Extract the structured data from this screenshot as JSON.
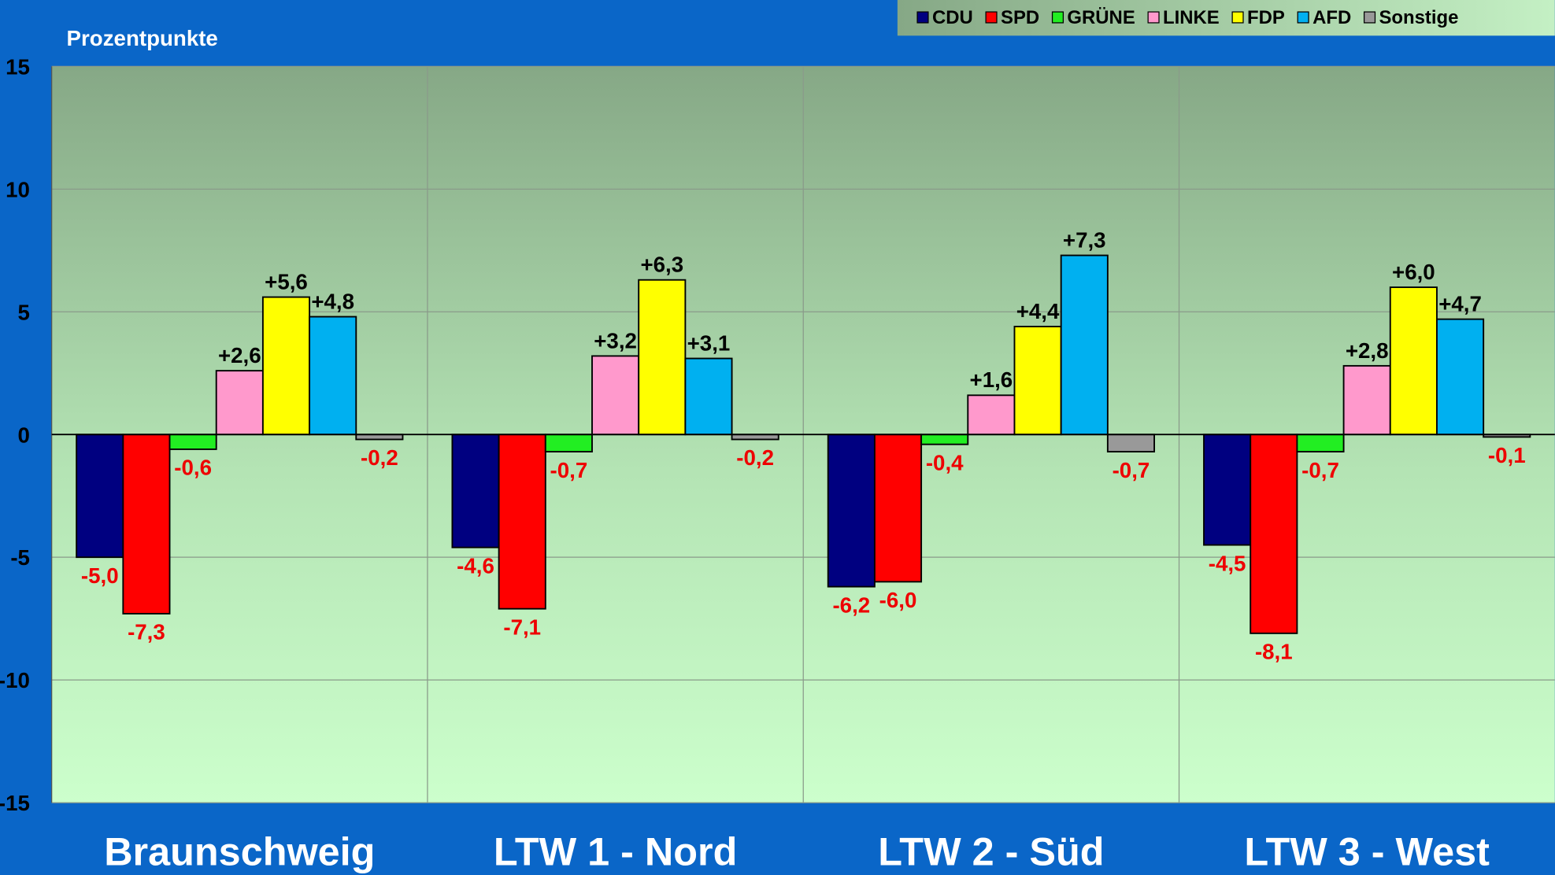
{
  "chart_data": {
    "type": "bar",
    "subtitle": "Prozentpunkte",
    "categories": [
      "Braunschweig",
      "LTW 1 - Nord",
      "LTW 2 - Süd",
      "LTW 3 - West"
    ],
    "series": [
      {
        "name": "CDU",
        "color": "#000080",
        "values": [
          -5.0,
          -4.6,
          -6.2,
          -4.5
        ],
        "value_labels": [
          "-5,0",
          "-4,6",
          "-6,2",
          "-4,5"
        ]
      },
      {
        "name": "SPD",
        "color": "#ff0000",
        "values": [
          -7.3,
          -7.1,
          -6.0,
          -8.1
        ],
        "value_labels": [
          "-7,3",
          "-7,1",
          "-6,0",
          "-8,1"
        ]
      },
      {
        "name": "GRÜNE",
        "color": "#22ee22",
        "values": [
          -0.6,
          -0.7,
          -0.4,
          -0.7
        ],
        "value_labels": [
          "-0,6",
          "-0,7",
          "-0,4",
          "-0,7"
        ]
      },
      {
        "name": "LINKE",
        "color": "#ff99cc",
        "values": [
          2.6,
          3.2,
          1.6,
          2.8
        ],
        "value_labels": [
          "+2,6",
          "+3,2",
          "+1,6",
          "+2,8"
        ]
      },
      {
        "name": "FDP",
        "color": "#ffff00",
        "values": [
          5.6,
          6.3,
          4.4,
          6.0
        ],
        "value_labels": [
          "+5,6",
          "+6,3",
          "+4,4",
          "+6,0"
        ]
      },
      {
        "name": "AFD",
        "color": "#00b0f0",
        "values": [
          4.8,
          3.1,
          7.3,
          4.7
        ],
        "value_labels": [
          "+4,8",
          "+3,1",
          "+7,3",
          "+4,7"
        ]
      },
      {
        "name": "Sonstige",
        "color": "#999999",
        "values": [
          -0.2,
          -0.2,
          -0.7,
          -0.1
        ],
        "value_labels": [
          "-0,2",
          "-0,2",
          "-0,7",
          "-0,1"
        ]
      }
    ],
    "ylim": [
      -15,
      15
    ],
    "yticks": [
      15,
      10,
      5,
      0,
      -5,
      -10,
      -15
    ],
    "grid": true,
    "legend": "upper right"
  }
}
